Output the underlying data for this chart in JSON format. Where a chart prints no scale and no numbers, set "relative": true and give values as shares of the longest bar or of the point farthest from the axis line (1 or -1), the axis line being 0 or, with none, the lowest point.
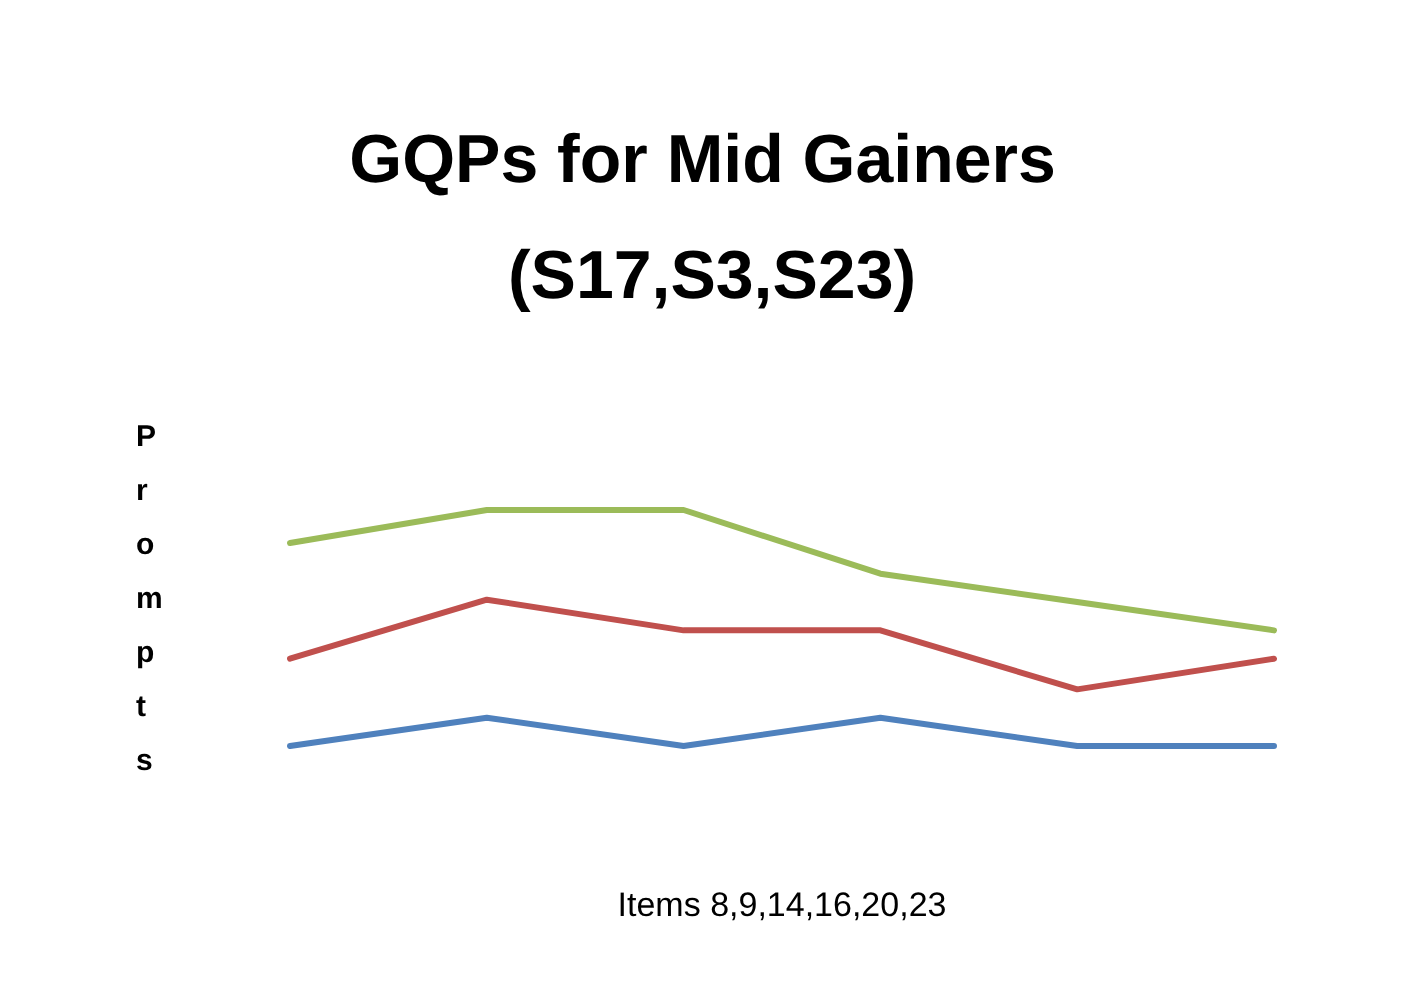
{
  "chart_data": {
    "type": "line",
    "title": "GQPs for Mid Gainers (S17,S3,S23)",
    "xlabel": "Items 8,9,14,16,20,23",
    "ylabel": "Prompts",
    "relative": true,
    "categories": [
      null,
      null,
      null,
      null,
      null,
      null
    ],
    "series": [
      {
        "color": "#9bbb59",
        "values": [
          0.86,
          1,
          1,
          0.73,
          0.61,
          0.49
        ]
      },
      {
        "color": "#c0504d",
        "values": [
          0.37,
          0.62,
          0.49,
          0.49,
          0.24,
          0.37
        ]
      },
      {
        "color": "#4f81bd",
        "values": [
          0,
          0.12,
          0,
          0.12,
          0,
          0
        ]
      }
    ],
    "marker": "none",
    "grid": false
  }
}
